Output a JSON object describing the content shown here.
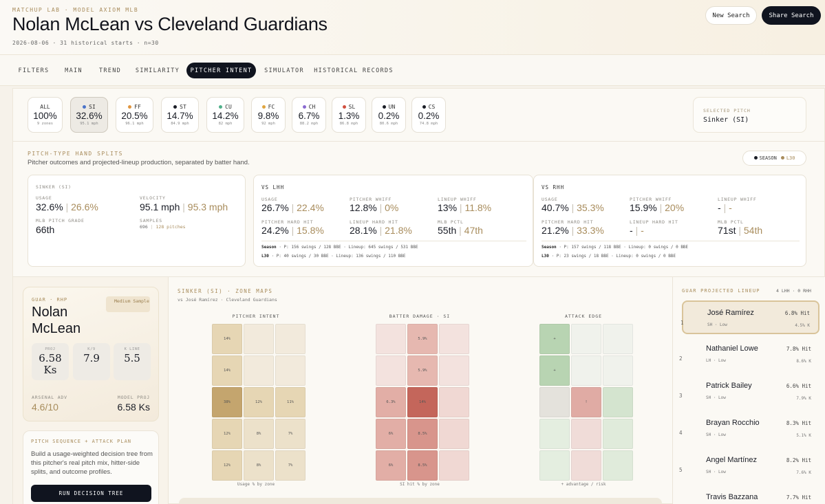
{
  "header": {
    "brand": "MATCHUP LAB · MODEL AXIOM MLB",
    "title": "Nolan McLean vs Cleveland Guardians",
    "subtitle": "2026-08-06 · 31 historical starts · n=30",
    "new_search": "New Search",
    "share_search": "Share Search"
  },
  "tabs": [
    "FILTERS",
    "MAIN",
    "TREND",
    "SIMILARITY",
    "PITCHER INTENT",
    "SIMULATOR",
    "HISTORICAL RECORDS"
  ],
  "active_tab": "PITCHER INTENT",
  "pitches": [
    {
      "code": "ALL",
      "pct": "100%",
      "sub": "9 zones",
      "color": ""
    },
    {
      "code": "SI",
      "pct": "32.6%",
      "sub": "95.1 mph",
      "color": "#4a73c9"
    },
    {
      "code": "FF",
      "pct": "20.5%",
      "sub": "96.1 mph",
      "color": "#e0953f"
    },
    {
      "code": "ST",
      "pct": "14.7%",
      "sub": "84.9 mph",
      "color": "#1a1d26"
    },
    {
      "code": "CU",
      "pct": "14.2%",
      "sub": "82 mph",
      "color": "#4fb08a"
    },
    {
      "code": "FC",
      "pct": "9.8%",
      "sub": "92 mph",
      "color": "#e0a53f"
    },
    {
      "code": "CH",
      "pct": "6.7%",
      "sub": "88.2 mph",
      "color": "#8a6ad0"
    },
    {
      "code": "SL",
      "pct": "1.3%",
      "sub": "86.8 mph",
      "color": "#d0503f"
    },
    {
      "code": "UN",
      "pct": "0.2%",
      "sub": "80.6 mph",
      "color": "#1a1d26"
    },
    {
      "code": "CS",
      "pct": "0.2%",
      "sub": "74.8 mph",
      "color": "#1a1d26"
    }
  ],
  "selected_pitch": {
    "label": "SELECTED PITCH",
    "value": "Sinker (SI)"
  },
  "hand_splits": {
    "label": "PITCH-TYPE HAND SPLITS",
    "subtitle": "Pitcher outcomes and projected-lineup production, separated by batter hand.",
    "legend_season": "SEASON",
    "legend_l30": "L30",
    "season_color": "#1a1d26",
    "l30_color": "#a88c5c"
  },
  "sinker_card": {
    "title": "SINKER (SI)",
    "usage_label": "USAGE",
    "usage_season": "32.6%",
    "usage_l30": "26.6%",
    "velo_label": "VELOCITY",
    "velo_season": "95.1 mph",
    "velo_l30": "95.3 mph",
    "grade_label": "MLB PITCH GRADE",
    "grade": "66th",
    "samples_label": "SAMPLES",
    "samples_season": "696",
    "samples_l30": "128 pitches"
  },
  "vs_lhh": {
    "title": "VS LHH",
    "usage_label": "USAGE",
    "usage_s": "26.7%",
    "usage_l": "22.4%",
    "whiff_label": "PITCHER WHIFF",
    "whiff_s": "12.8%",
    "whiff_l": "0%",
    "lwhiff_label": "LINEUP WHIFF",
    "lwhiff_s": "13%",
    "lwhiff_l": "11.8%",
    "hh_label": "PITCHER HARD HIT",
    "hh_s": "24.2%",
    "hh_l": "15.8%",
    "lhh_label": "LINEUP HARD HIT",
    "lhh_s": "28.1%",
    "lhh_l": "21.8%",
    "pctl_label": "MLB PCTL",
    "pctl_s": "55th",
    "pctl_l": "47th",
    "foot_season_label": "Season",
    "foot_season": "· P: 156 swings / 128 BBE · Lineup: 645 swings / 531 BBE",
    "foot_l30_label": "L30",
    "foot_l30": "· P: 40 swings / 30 BBE · Lineup: 136 swings / 110 BBE"
  },
  "vs_rhh": {
    "title": "VS RHH",
    "usage_label": "USAGE",
    "usage_s": "40.7%",
    "usage_l": "35.3%",
    "whiff_label": "PITCHER WHIFF",
    "whiff_s": "15.9%",
    "whiff_l": "20%",
    "lwhiff_label": "LINEUP WHIFF",
    "lwhiff_s": "-",
    "lwhiff_l": "-",
    "hh_label": "PITCHER HARD HIT",
    "hh_s": "21.2%",
    "hh_l": "33.3%",
    "lhh_label": "LINEUP HARD HIT",
    "lhh_s": "-",
    "lhh_l": "-",
    "pctl_label": "MLB PCTL",
    "pctl_s": "71st",
    "pctl_l": "54th",
    "foot_season_label": "Season",
    "foot_season": "· P: 157 swings / 118 BBE · Lineup: 0 swings / 0 BBE",
    "foot_l30_label": "L30",
    "foot_l30": "· P: 23 swings / 18 BBE · Lineup: 0 swings / 0 BBE"
  },
  "pitcher_card": {
    "team": "GUAR · RHP",
    "name": "Nolan McLean",
    "sample": "Medium Sample",
    "proj_label": "PROJ",
    "proj": "6.58 Ks",
    "k9_label": "K/9",
    "k9": "7.9",
    "kline_label": "K LINE",
    "kline": "5.5",
    "arsenal_label": "ARSENAL ADV",
    "arsenal": "4.6/10",
    "model_label": "MODEL PROJ",
    "model": "6.58 Ks"
  },
  "sequence": {
    "title": "PITCH SEQUENCE + ATTACK PLAN",
    "desc": "Build a usage-weighted decision tree from this pitcher's real pitch mix, hitter-side splits, and outcome profiles.",
    "button": "RUN DECISION TREE"
  },
  "zones": {
    "title": "SINKER (SI) · ZONE MAPS",
    "subtitle": "vs José Ramírez · Cleveland Guardians",
    "maps": [
      {
        "title": "PITCHER INTENT",
        "caption": "Usage % by zone",
        "cells": [
          {
            "label": "14%",
            "color": "#e6d6b4"
          },
          {
            "label": "",
            "color": "#f2eadc"
          },
          {
            "label": "",
            "color": "#f2eadc"
          },
          {
            "label": "14%",
            "color": "#e6d6b4"
          },
          {
            "label": "",
            "color": "#f2eadc"
          },
          {
            "label": "",
            "color": "#f2eadc"
          },
          {
            "label": "38%",
            "color": "#c4a56e"
          },
          {
            "label": "12%",
            "color": "#e6d6b4"
          },
          {
            "label": "11%",
            "color": "#e6d6b4"
          },
          {
            "label": "12%",
            "color": "#e6d6b4"
          },
          {
            "label": "8%",
            "color": "#ece1ca"
          },
          {
            "label": "7%",
            "color": "#ece1ca"
          },
          {
            "label": "12%",
            "color": "#e6d6b4"
          },
          {
            "label": "8%",
            "color": "#ece1ca"
          },
          {
            "label": "7%",
            "color": "#ece1ca"
          }
        ]
      },
      {
        "title": "BATTER DAMAGE · SI",
        "caption": "SI hit % by zone",
        "cells": [
          {
            "label": "",
            "color": "#f3e2de"
          },
          {
            "label": "5.9%",
            "color": "#e6b8b0"
          },
          {
            "label": "",
            "color": "#f3e2de"
          },
          {
            "label": "",
            "color": "#f3e2de"
          },
          {
            "label": "5.9%",
            "color": "#e6b8b0"
          },
          {
            "label": "",
            "color": "#f3e2de"
          },
          {
            "label": "6.3%",
            "color": "#e2aea6"
          },
          {
            "label": "14%",
            "color": "#c4665b"
          },
          {
            "label": "",
            "color": "#f0d8d3"
          },
          {
            "label": "6%",
            "color": "#e2aea6"
          },
          {
            "label": "8.5%",
            "color": "#d8958c"
          },
          {
            "label": "",
            "color": "#f0d8d3"
          },
          {
            "label": "6%",
            "color": "#e2aea6"
          },
          {
            "label": "8.5%",
            "color": "#d8958c"
          },
          {
            "label": "",
            "color": "#f0d8d3"
          }
        ]
      },
      {
        "title": "ATTACK EDGE",
        "caption": "+ advantage / risk",
        "cells": [
          {
            "label": "+",
            "color": "#b8d4b2"
          },
          {
            "label": "",
            "color": "#f0f2ec"
          },
          {
            "label": "",
            "color": "#f0f2ec"
          },
          {
            "label": "+",
            "color": "#b8d4b2"
          },
          {
            "label": "",
            "color": "#f0f2ec"
          },
          {
            "label": "",
            "color": "#f0f2ec"
          },
          {
            "label": "",
            "color": "#e4e2dc"
          },
          {
            "label": "!",
            "color": "#e0aba4"
          },
          {
            "label": "",
            "color": "#d4e4cf"
          },
          {
            "label": "",
            "color": "#e4eee0"
          },
          {
            "label": "",
            "color": "#f0dcd8"
          },
          {
            "label": "",
            "color": "#e0ebdb"
          },
          {
            "label": "",
            "color": "#e4eee0"
          },
          {
            "label": "",
            "color": "#f0dcd8"
          },
          {
            "label": "",
            "color": "#e0ebdb"
          }
        ]
      }
    ]
  },
  "lineup": {
    "title": "GUAR PROJECTED LINEUP",
    "count": "4 LHH · 0 RHH",
    "batters": [
      {
        "num": "1",
        "name": "José Ramírez",
        "hand": "SH · Low",
        "hit": "6.8% Hit",
        "k": "4.5% K"
      },
      {
        "num": "2",
        "name": "Nathaniel Lowe",
        "hand": "LH · Low",
        "hit": "7.8% Hit",
        "k": "8.6% K"
      },
      {
        "num": "3",
        "name": "Patrick Bailey",
        "hand": "SH · Low",
        "hit": "6.6% Hit",
        "k": "7.9% K"
      },
      {
        "num": "4",
        "name": "Brayan Rocchio",
        "hand": "SH · Low",
        "hit": "8.3% Hit",
        "k": "5.1% K"
      },
      {
        "num": "5",
        "name": "Angel Martínez",
        "hand": "SH · Low",
        "hit": "8.2% Hit",
        "k": "7.6% K"
      },
      {
        "num": "6",
        "name": "Travis Bazzana",
        "hand": "",
        "hit": "7.7% Hit",
        "k": ""
      }
    ]
  }
}
